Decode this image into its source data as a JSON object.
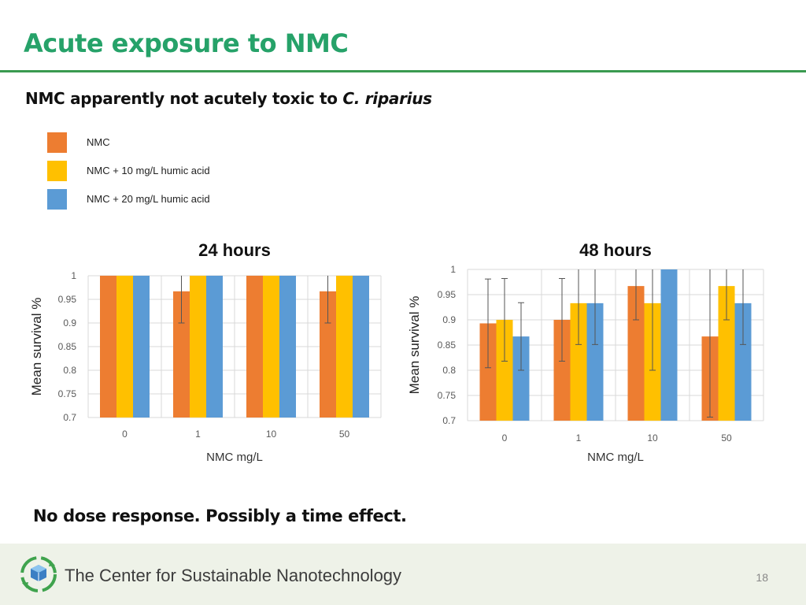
{
  "slide": {
    "title": "Acute exposure to NMC",
    "subtitle_main": "NMC apparently not acutely toxic to ",
    "subtitle_species": "C. riparius",
    "conclusion": "No dose response. Possibly a time effect.",
    "footer_org": "The Center for Sustainable Nanotechnology",
    "page_number": "18"
  },
  "legend": [
    {
      "label": "NMC",
      "color": "#ed7d31"
    },
    {
      "label": "NMC + 10 mg/L humic acid",
      "color": "#ffc000"
    },
    {
      "label": "NMC + 20 mg/L humic acid",
      "color": "#5b9bd5"
    }
  ],
  "chart_data": [
    {
      "type": "bar",
      "title": "24 hours",
      "xlabel": "NMC mg/L",
      "ylabel": "Mean survival %",
      "categories": [
        "0",
        "1",
        "10",
        "50"
      ],
      "ylim": [
        0.7,
        1
      ],
      "yticks": [
        0.7,
        0.75,
        0.8,
        0.85,
        0.9,
        0.95,
        1
      ],
      "ytick_labels": [
        "0.7",
        "0.75",
        "0.8",
        "0.85",
        "0.9",
        "0.95",
        "1"
      ],
      "grid": true,
      "series": [
        {
          "name": "NMC",
          "color": "#ed7d31",
          "values": [
            1,
            0.967,
            1,
            0.967
          ],
          "errors": [
            0,
            0.067,
            0,
            0.067
          ]
        },
        {
          "name": "NMC + 10 mg/L humic acid",
          "color": "#ffc000",
          "values": [
            1,
            1,
            1,
            1
          ],
          "errors": [
            0,
            0,
            0,
            0
          ]
        },
        {
          "name": "NMC + 20 mg/L humic acid",
          "color": "#5b9bd5",
          "values": [
            1,
            1,
            1,
            1
          ],
          "errors": [
            0,
            0,
            0,
            0
          ]
        }
      ]
    },
    {
      "type": "bar",
      "title": "48 hours",
      "xlabel": "NMC mg/L",
      "ylabel": "Mean survival %",
      "categories": [
        "0",
        "1",
        "10",
        "50"
      ],
      "ylim": [
        0.7,
        1
      ],
      "yticks": [
        0.7,
        0.75,
        0.8,
        0.85,
        0.9,
        0.95,
        1
      ],
      "ytick_labels": [
        "0.7",
        "0.75",
        "0.8",
        "0.85",
        "0.9",
        "0.95",
        "1"
      ],
      "grid": true,
      "series": [
        {
          "name": "NMC",
          "color": "#ed7d31",
          "values": [
            0.893,
            0.9,
            0.967,
            0.867
          ],
          "errors": [
            0.088,
            0.082,
            0.067,
            0.16
          ]
        },
        {
          "name": "NMC + 10 mg/L humic acid",
          "color": "#ffc000",
          "values": [
            0.9,
            0.933,
            0.933,
            0.967
          ],
          "errors": [
            0.082,
            0.082,
            0.133,
            0.067
          ]
        },
        {
          "name": "NMC + 20 mg/L humic acid",
          "color": "#5b9bd5",
          "values": [
            0.867,
            0.933,
            1,
            0.933
          ],
          "errors": [
            0.067,
            0.082,
            0,
            0.082
          ]
        }
      ]
    }
  ]
}
